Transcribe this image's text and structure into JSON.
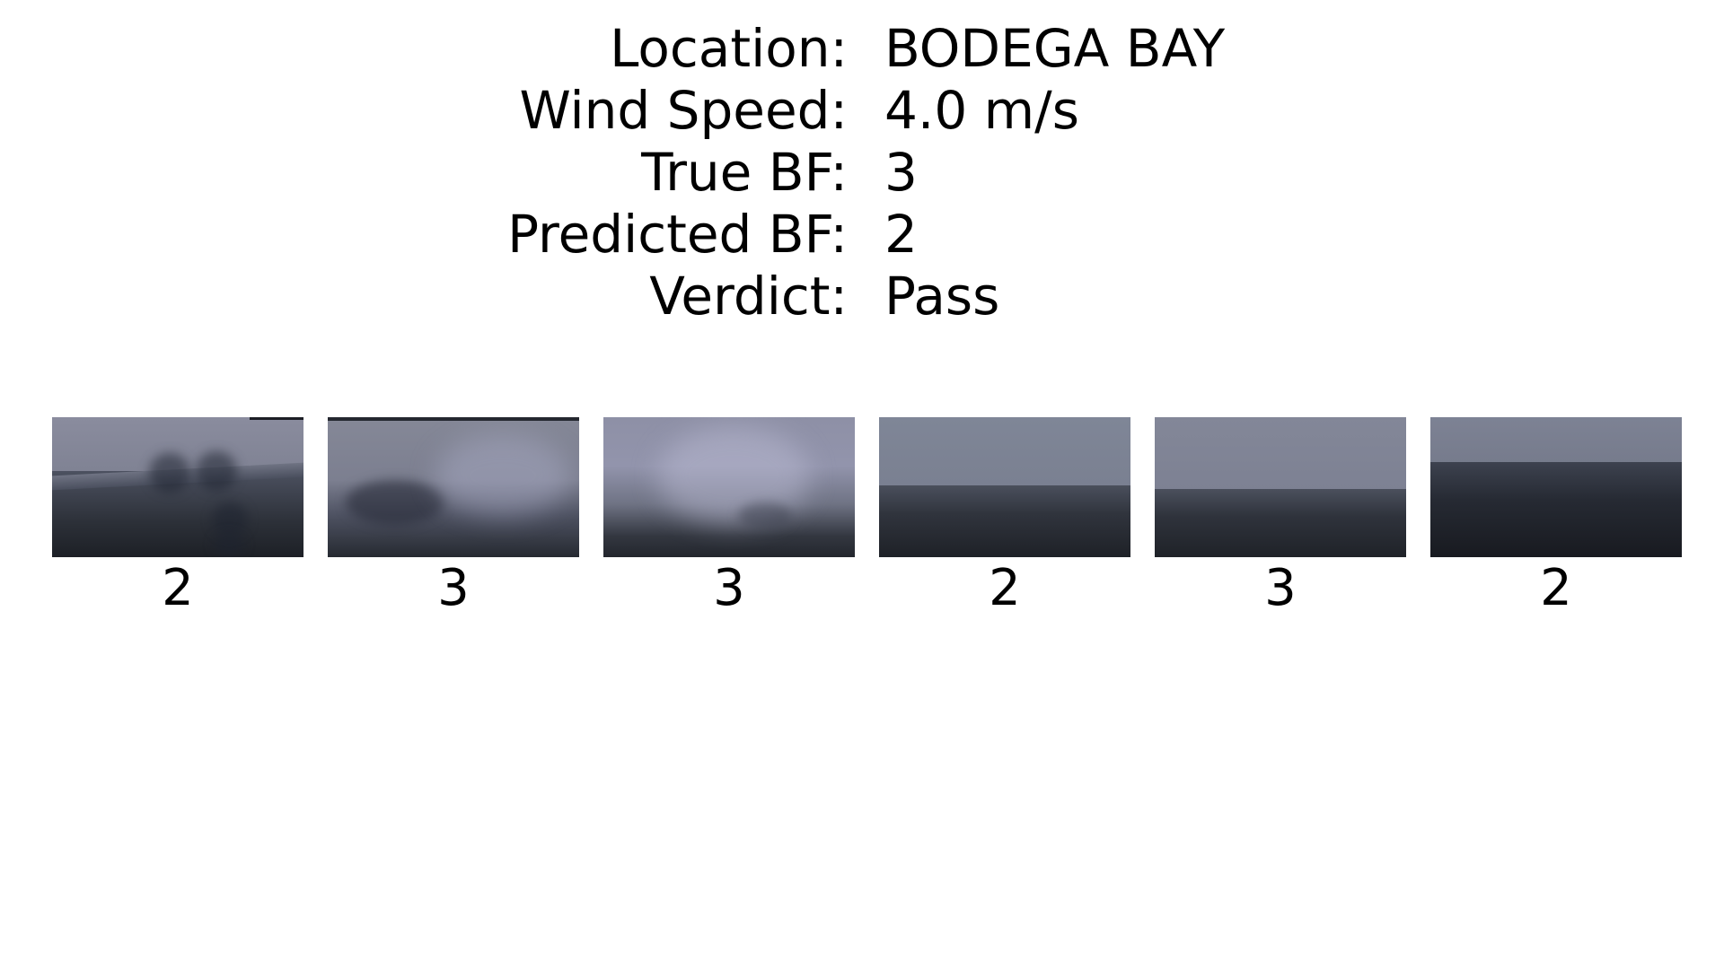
{
  "info": {
    "location_label": "Location:",
    "location_value": "BODEGA BAY",
    "wind_label": "Wind Speed:",
    "wind_value": "4.0 m/s",
    "true_bf_label": "True BF:",
    "true_bf_value": "3",
    "pred_bf_label": "Predicted BF:",
    "pred_bf_value": "2",
    "verdict_label": "Verdict:",
    "verdict_value": "Pass"
  },
  "frames": [
    {
      "bf": "2",
      "scene": "foggy-sea-with-water-droplets"
    },
    {
      "bf": "3",
      "scene": "foggy-sea-blurred"
    },
    {
      "bf": "3",
      "scene": "foggy-sea-hazy"
    },
    {
      "bf": "2",
      "scene": "overcast-sea-horizon"
    },
    {
      "bf": "3",
      "scene": "overcast-sea-horizon"
    },
    {
      "bf": "2",
      "scene": "overcast-sea-dark-water"
    }
  ]
}
